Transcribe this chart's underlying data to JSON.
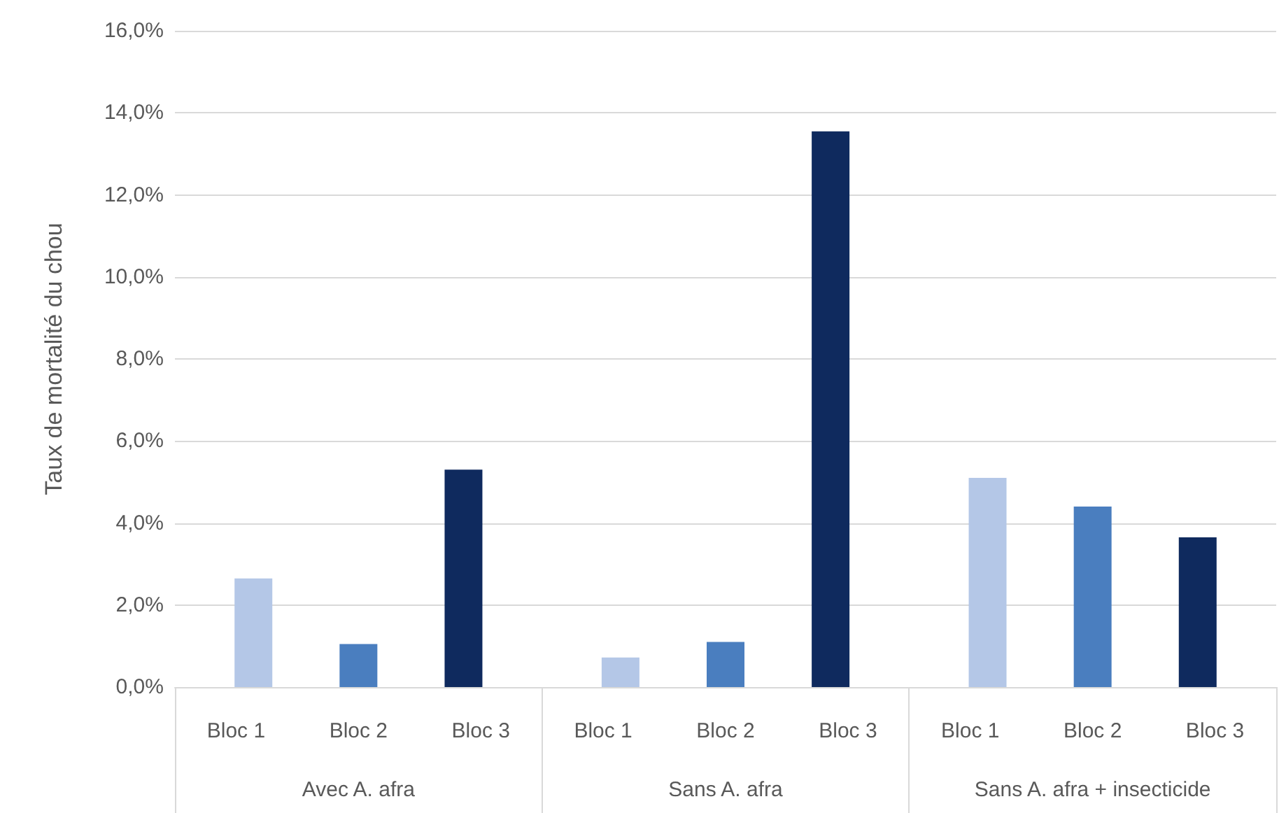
{
  "chart_data": {
    "type": "bar",
    "ylabel": "Taux de mortalité du chou",
    "categories": [
      "Avec A. afra",
      "Sans A. afra",
      "Sans A. afra + insecticide"
    ],
    "series": [
      {
        "name": "Bloc 1",
        "color": "#b4c7e7",
        "values": [
          2.65,
          0.72,
          5.1
        ]
      },
      {
        "name": "Bloc 2",
        "color": "#4a7ebf",
        "values": [
          1.05,
          1.1,
          4.4
        ]
      },
      {
        "name": "Bloc 3",
        "color": "#0f2a5e",
        "values": [
          5.3,
          13.55,
          3.65
        ]
      }
    ],
    "ylim": [
      0,
      16
    ],
    "yticks": [
      {
        "value": 0,
        "label": "0,0%"
      },
      {
        "value": 2,
        "label": "2,0%"
      },
      {
        "value": 4,
        "label": "4,0%"
      },
      {
        "value": 6,
        "label": "6,0%"
      },
      {
        "value": 8,
        "label": "8,0%"
      },
      {
        "value": 10,
        "label": "10,0%"
      },
      {
        "value": 12,
        "label": "12,0%"
      },
      {
        "value": 14,
        "label": "14,0%"
      },
      {
        "value": 16,
        "label": "16,0%"
      }
    ],
    "grid": "y",
    "legend": false
  }
}
